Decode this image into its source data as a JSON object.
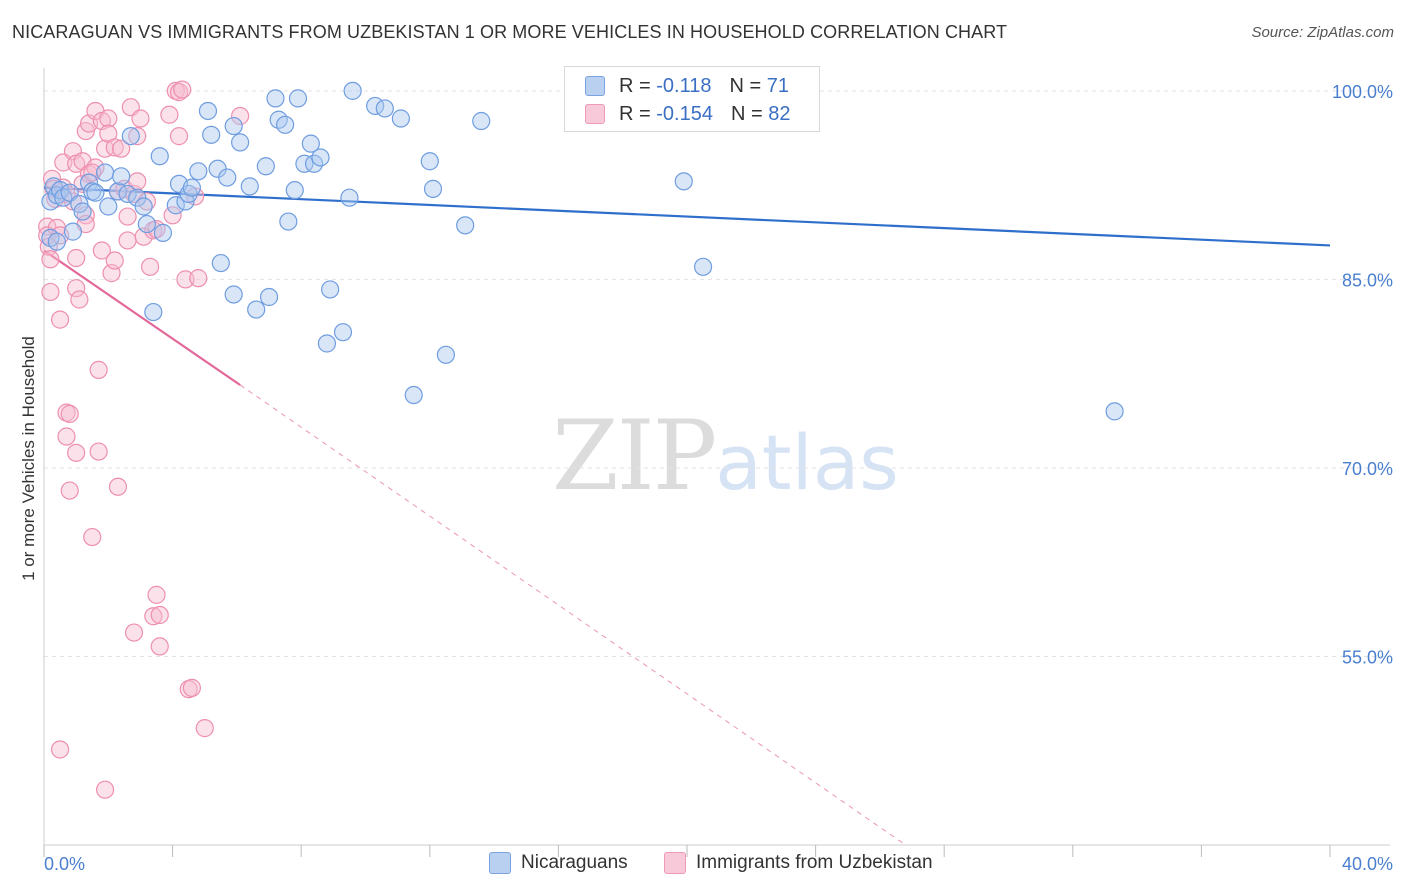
{
  "header": {
    "title": "NICARAGUAN VS IMMIGRANTS FROM UZBEKISTAN 1 OR MORE VEHICLES IN HOUSEHOLD CORRELATION CHART",
    "source": "Source: ZipAtlas.com"
  },
  "watermark": {
    "zip": "ZIP",
    "atlas": "atlas"
  },
  "legend": {
    "r_label": "R =",
    "n_label": "N =",
    "series1": {
      "r": "-0.118",
      "n": "71"
    },
    "series2": {
      "r": "-0.154",
      "n": "82"
    }
  },
  "bottom_legend": {
    "series1": "Nicaraguans",
    "series2": "Immigrants from Uzbekistan"
  },
  "colors": {
    "blue_fill": "#a9c7ef",
    "blue_stroke": "#6f9de0",
    "blue_line": "#2f6fcc",
    "pink_fill": "#f6bcd0",
    "pink_stroke": "#ee8fb0",
    "pink_line": "#e4679a",
    "grid": "#e3e3e3",
    "axis_text": "#4a7fd0"
  },
  "chart_data": {
    "type": "scatter",
    "title": "NICARAGUAN VS IMMIGRANTS FROM UZBEKISTAN 1 OR MORE VEHICLES IN HOUSEHOLD CORRELATION CHART",
    "xlabel": "",
    "ylabel": "1 or more Vehicles in Household",
    "xlim": [
      0,
      40
    ],
    "ylim": [
      40,
      101.5
    ],
    "x_tick_labels": [
      "0.0%",
      "40.0%"
    ],
    "y_ticks": [
      55,
      70,
      85,
      100
    ],
    "y_tick_labels": [
      "55.0%",
      "70.0%",
      "85.0%",
      "100.0%"
    ],
    "grid": true,
    "legend_position": "top-center",
    "series": [
      {
        "name": "Nicaraguans",
        "r": -0.118,
        "n": 71,
        "trend": {
          "x": [
            0,
            40
          ],
          "y": [
            92.3,
            87.7
          ],
          "dashed_from": null
        },
        "points": [
          [
            0.2,
            91.2
          ],
          [
            0.2,
            88.3
          ],
          [
            0.3,
            92.4
          ],
          [
            0.4,
            91.7
          ],
          [
            0.4,
            88.0
          ],
          [
            0.5,
            92.1
          ],
          [
            0.6,
            91.5
          ],
          [
            0.8,
            91.9
          ],
          [
            0.9,
            88.8
          ],
          [
            1.1,
            91.0
          ],
          [
            1.2,
            90.4
          ],
          [
            1.4,
            92.7
          ],
          [
            1.5,
            92.0
          ],
          [
            1.6,
            91.9
          ],
          [
            1.9,
            93.5
          ],
          [
            2.0,
            90.8
          ],
          [
            2.3,
            92.0
          ],
          [
            2.4,
            93.2
          ],
          [
            2.6,
            91.8
          ],
          [
            2.7,
            96.4
          ],
          [
            2.9,
            91.5
          ],
          [
            3.1,
            90.8
          ],
          [
            3.2,
            89.4
          ],
          [
            3.4,
            82.4
          ],
          [
            3.6,
            94.8
          ],
          [
            3.7,
            88.7
          ],
          [
            4.1,
            90.9
          ],
          [
            4.2,
            92.6
          ],
          [
            4.4,
            91.2
          ],
          [
            4.5,
            91.8
          ],
          [
            4.6,
            92.3
          ],
          [
            4.8,
            93.6
          ],
          [
            5.1,
            98.4
          ],
          [
            5.2,
            96.5
          ],
          [
            5.4,
            93.8
          ],
          [
            5.5,
            86.3
          ],
          [
            5.7,
            93.1
          ],
          [
            5.9,
            83.8
          ],
          [
            5.9,
            97.2
          ],
          [
            6.1,
            95.9
          ],
          [
            6.4,
            92.4
          ],
          [
            6.6,
            82.6
          ],
          [
            6.9,
            94.0
          ],
          [
            7.0,
            83.6
          ],
          [
            7.2,
            99.4
          ],
          [
            7.3,
            97.7
          ],
          [
            7.5,
            97.3
          ],
          [
            7.6,
            89.6
          ],
          [
            7.8,
            92.1
          ],
          [
            7.9,
            99.4
          ],
          [
            8.1,
            94.2
          ],
          [
            8.3,
            95.8
          ],
          [
            8.4,
            94.2
          ],
          [
            8.6,
            94.7
          ],
          [
            8.8,
            79.9
          ],
          [
            8.9,
            84.2
          ],
          [
            9.3,
            80.8
          ],
          [
            9.5,
            91.5
          ],
          [
            9.6,
            100.0
          ],
          [
            10.3,
            98.8
          ],
          [
            10.6,
            98.6
          ],
          [
            11.1,
            97.8
          ],
          [
            11.5,
            75.8
          ],
          [
            12.0,
            94.4
          ],
          [
            12.1,
            92.2
          ],
          [
            12.5,
            79.0
          ],
          [
            13.1,
            89.3
          ],
          [
            13.6,
            97.6
          ],
          [
            19.9,
            92.8
          ],
          [
            20.5,
            86.0
          ],
          [
            33.3,
            74.5
          ]
        ]
      },
      {
        "name": "Immigrants from Uzbekistan",
        "r": -0.154,
        "n": 82,
        "trend": {
          "x": [
            0,
            6.1
          ],
          "y": [
            87.3,
            76.6
          ],
          "dashed_to": [
            26.8,
            40
          ]
        },
        "points": [
          [
            0.1,
            89.2
          ],
          [
            0.1,
            88.5
          ],
          [
            0.15,
            87.6
          ],
          [
            0.2,
            86.6
          ],
          [
            0.2,
            84.0
          ],
          [
            0.25,
            93.0
          ],
          [
            0.3,
            92.2
          ],
          [
            0.35,
            91.4
          ],
          [
            0.4,
            89.1
          ],
          [
            0.5,
            88.5
          ],
          [
            0.5,
            81.8
          ],
          [
            0.5,
            47.6
          ],
          [
            0.6,
            94.3
          ],
          [
            0.6,
            92.3
          ],
          [
            0.7,
            91.8
          ],
          [
            0.7,
            74.4
          ],
          [
            0.7,
            72.5
          ],
          [
            0.8,
            74.3
          ],
          [
            0.8,
            68.2
          ],
          [
            0.9,
            95.2
          ],
          [
            0.9,
            91.2
          ],
          [
            1.0,
            94.2
          ],
          [
            1.0,
            86.7
          ],
          [
            1.0,
            84.3
          ],
          [
            1.0,
            71.2
          ],
          [
            1.1,
            83.4
          ],
          [
            1.2,
            94.4
          ],
          [
            1.2,
            92.6
          ],
          [
            1.3,
            96.8
          ],
          [
            1.3,
            90.1
          ],
          [
            1.3,
            89.4
          ],
          [
            1.4,
            97.4
          ],
          [
            1.4,
            93.4
          ],
          [
            1.5,
            64.5
          ],
          [
            1.6,
            98.4
          ],
          [
            1.6,
            93.9
          ],
          [
            1.7,
            77.8
          ],
          [
            1.7,
            71.3
          ],
          [
            1.8,
            97.6
          ],
          [
            1.8,
            87.3
          ],
          [
            1.9,
            95.4
          ],
          [
            1.9,
            44.4
          ],
          [
            2.0,
            97.8
          ],
          [
            2.0,
            96.6
          ],
          [
            2.1,
            85.5
          ],
          [
            2.2,
            95.5
          ],
          [
            2.2,
            86.5
          ],
          [
            2.3,
            92.0
          ],
          [
            2.3,
            68.5
          ],
          [
            2.4,
            95.4
          ],
          [
            2.5,
            92.2
          ],
          [
            2.6,
            90.0
          ],
          [
            2.6,
            88.1
          ],
          [
            2.7,
            98.7
          ],
          [
            2.8,
            91.8
          ],
          [
            2.8,
            56.9
          ],
          [
            2.9,
            96.4
          ],
          [
            2.9,
            92.8
          ],
          [
            3.0,
            97.8
          ],
          [
            3.1,
            88.4
          ],
          [
            3.2,
            91.2
          ],
          [
            3.3,
            86.0
          ],
          [
            3.4,
            88.9
          ],
          [
            3.4,
            58.2
          ],
          [
            3.5,
            89.0
          ],
          [
            3.5,
            59.9
          ],
          [
            3.6,
            58.3
          ],
          [
            3.6,
            55.8
          ],
          [
            3.9,
            98.1
          ],
          [
            4.0,
            90.1
          ],
          [
            4.1,
            100.0
          ],
          [
            4.2,
            99.9
          ],
          [
            4.4,
            85.0
          ],
          [
            4.2,
            96.4
          ],
          [
            4.3,
            100.1
          ],
          [
            4.5,
            52.4
          ],
          [
            4.6,
            52.5
          ],
          [
            4.7,
            91.6
          ],
          [
            4.8,
            85.1
          ],
          [
            5.0,
            49.3
          ],
          [
            6.1,
            98.0
          ],
          [
            1.5,
            93.5
          ]
        ]
      }
    ]
  }
}
